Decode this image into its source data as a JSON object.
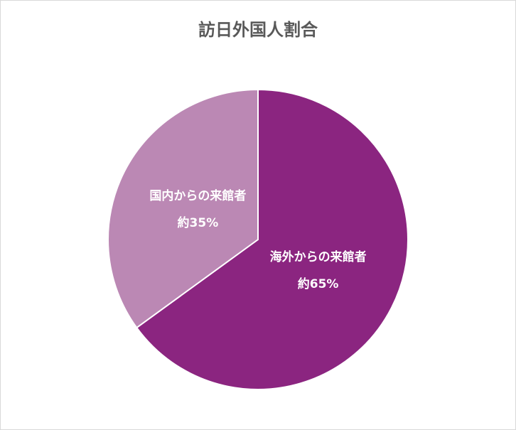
{
  "chart_data": {
    "type": "pie",
    "title": "訪日外国人割合",
    "categories": [
      "海外からの来館者",
      "国内からの来館者"
    ],
    "values": [
      65,
      35
    ],
    "value_labels": [
      "約65%",
      "約35%"
    ],
    "colors": [
      "#8b2580",
      "#bb88b4"
    ]
  }
}
